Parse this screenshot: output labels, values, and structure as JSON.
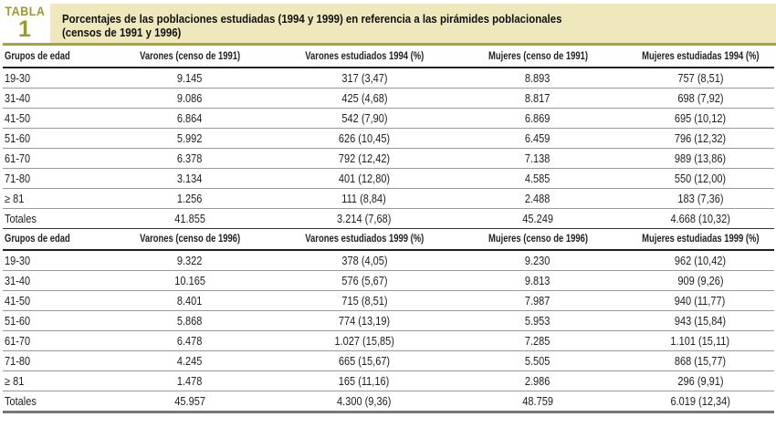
{
  "label": {
    "word": "TABLA",
    "number": "1"
  },
  "title": {
    "line1": "Porcentajes de las poblaciones estudiadas (1994 y 1999) en referencia a las pirámides poblacionales",
    "line2": "(censos de 1991 y 1996)"
  },
  "colors": {
    "accent": "#a6a23c",
    "title_bg": "#efe8bc"
  },
  "sections": [
    {
      "headers": [
        "Grupos de edad",
        "Varones (censo de 1991)",
        "Varones estudiados 1994 (%)",
        "Mujeres (censo de 1991)",
        "Mujeres estudiadas 1994 (%)"
      ],
      "rows": [
        [
          "19-30",
          "9.145",
          "317 (3,47)",
          "8.893",
          "757 (8,51)"
        ],
        [
          "31-40",
          "9.086",
          "425 (4,68)",
          "8.817",
          "698 (7,92)"
        ],
        [
          "41-50",
          "6.864",
          "542 (7,90)",
          "6.869",
          "695 (10,12)"
        ],
        [
          "51-60",
          "5.992",
          "626 (10,45)",
          "6.459",
          "796 (12,32)"
        ],
        [
          "61-70",
          "6.378",
          "792 (12,42)",
          "7.138",
          "989 (13,86)"
        ],
        [
          "71-80",
          "3.134",
          "401 (12,80)",
          "4.585",
          "550 (12,00)"
        ],
        [
          "≥ 81",
          "1.256",
          "111 (8,84)",
          "2.488",
          "183 (7,36)"
        ],
        [
          "Totales",
          "41.855",
          "3.214 (7,68)",
          "45.249",
          "4.668 (10,32)"
        ]
      ]
    },
    {
      "headers": [
        "Grupos de edad",
        "Varones (censo de 1996)",
        "Varones estudiados 1999 (%)",
        "Mujeres (censo de 1996)",
        "Mujeres estudiadas 1999 (%)"
      ],
      "rows": [
        [
          "19-30",
          "9.322",
          "378 (4,05)",
          "9.230",
          "962 (10,42)"
        ],
        [
          "31-40",
          "10.165",
          "576 (5,67)",
          "9.813",
          "909 (9,26)"
        ],
        [
          "41-50",
          "8.401",
          "715 (8,51)",
          "7.987",
          "940 (11,77)"
        ],
        [
          "51-60",
          "5.868",
          "774 (13,19)",
          "5.953",
          "943 (15,84)"
        ],
        [
          "61-70",
          "6.478",
          "1.027 (15,85)",
          "7.285",
          "1.101 (15,11)"
        ],
        [
          "71-80",
          "4.245",
          "665 (15,67)",
          "5.505",
          "868 (15,77)"
        ],
        [
          "≥ 81",
          "1.478",
          "165 (11,16)",
          "2.986",
          "296 (9,91)"
        ],
        [
          "Totales",
          "45.957",
          "4.300 (9,36)",
          "48.759",
          "6.019 (12,34)"
        ]
      ]
    }
  ]
}
